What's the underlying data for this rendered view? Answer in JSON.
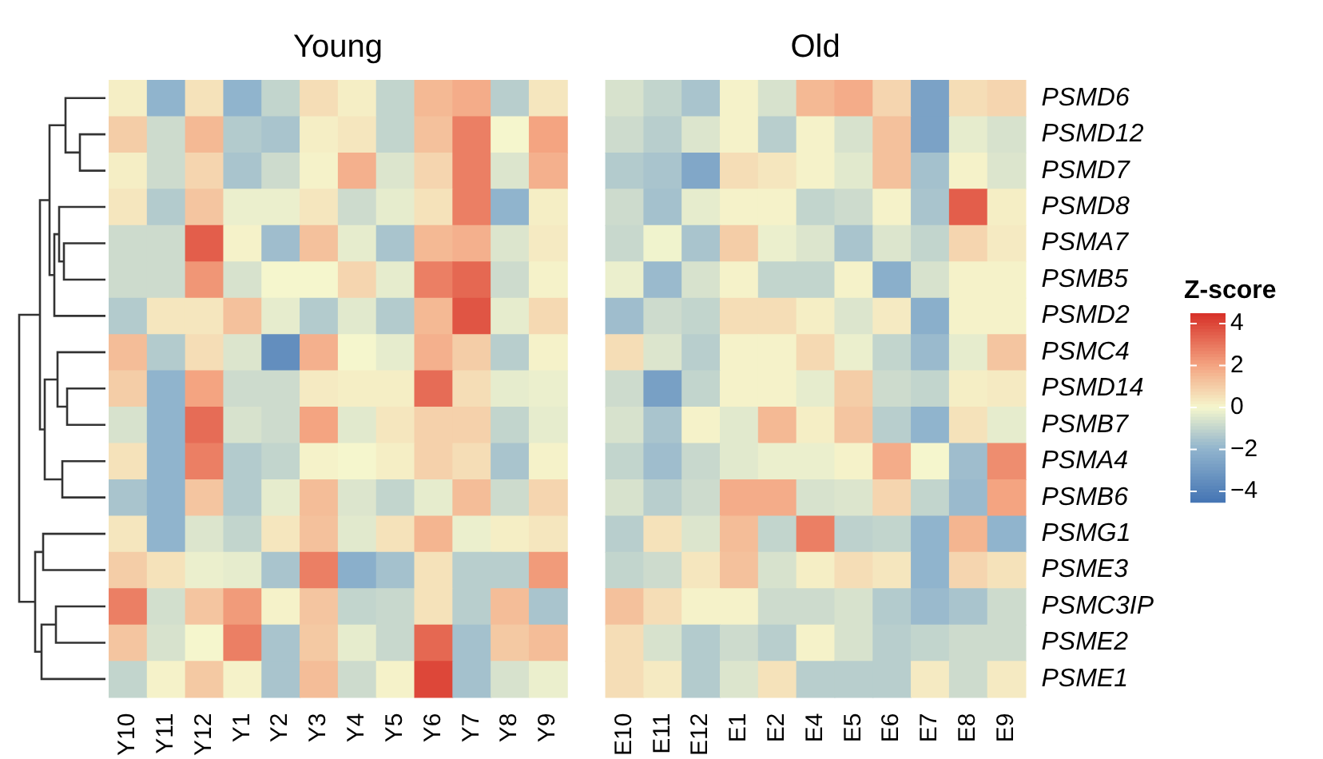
{
  "chart_data": {
    "type": "heatmap",
    "annotations": [
      "Young",
      "Old"
    ],
    "categories": [
      "Y10",
      "Y11",
      "Y12",
      "Y1",
      "Y2",
      "Y3",
      "Y4",
      "Y5",
      "Y6",
      "Y7",
      "Y8",
      "Y9",
      null,
      "E10",
      "E11",
      "E12",
      "E1",
      "E2",
      "E4",
      "E5",
      "E6",
      "E7",
      "E8",
      "E9"
    ],
    "y_categories": [
      "PSMD6",
      "PSMD12",
      "PSMD7",
      "PSMD8",
      "PSMA7",
      "PSMB5",
      "PSMD2",
      "PSMC4",
      "PSMD14",
      "PSMB7",
      "PSMA4",
      "PSMB6",
      "PSMG1",
      "PSME3",
      "PSMC3IP",
      "PSME2",
      "PSME1"
    ],
    "clabel": "Z-score",
    "clim": [
      -4.5,
      4.5
    ],
    "cticks": [
      -4,
      -2,
      0,
      2,
      4
    ],
    "cells": [
      [
        0.2,
        -2,
        0.5,
        -2,
        -1,
        0.6,
        0.2,
        -1,
        1.5,
        1.8,
        -1.2,
        0.4,
        null,
        -0.6,
        -1,
        -1.5,
        0.1,
        -0.6,
        1.5,
        1.8,
        0.8,
        -2.7,
        0.6,
        0.8
      ],
      [
        1,
        -0.8,
        1.5,
        -1.3,
        -1.5,
        0.2,
        0.4,
        -1,
        1.3,
        2.8,
        0,
        2,
        null,
        -0.8,
        -1.2,
        -0.5,
        0.1,
        -1.2,
        0.1,
        -0.6,
        1.3,
        -2.7,
        -0.3,
        -0.6
      ],
      [
        0.2,
        -0.8,
        0.8,
        -1.5,
        -0.8,
        0.1,
        1.7,
        -0.5,
        0.8,
        2.8,
        -0.5,
        1.7,
        null,
        -1.3,
        -1.5,
        -2.5,
        0.6,
        0.4,
        0.1,
        -0.4,
        1.3,
        -1.6,
        0.1,
        -0.5
      ],
      [
        0.4,
        -1.3,
        1.2,
        -0.2,
        -0.2,
        0.4,
        -0.8,
        -0.3,
        0.5,
        2.8,
        -2,
        0.2,
        null,
        -0.8,
        -1.6,
        -0.3,
        0.1,
        0.1,
        -1,
        -0.8,
        0.1,
        -1.5,
        3.5,
        0.2
      ],
      [
        -0.8,
        -0.8,
        3.5,
        0.1,
        -1.7,
        1.3,
        -0.3,
        -1.5,
        1.5,
        1.7,
        -0.5,
        0.3,
        null,
        -0.9,
        -0.1,
        -1.5,
        1,
        -0.2,
        -0.5,
        -1.5,
        -0.5,
        -1,
        0.8,
        0.3
      ],
      [
        -0.8,
        -0.8,
        2.3,
        -0.6,
        0,
        0,
        0.8,
        -0.3,
        2.8,
        3.3,
        -0.8,
        0.1,
        null,
        -0.2,
        -1.8,
        -0.6,
        0.1,
        -1,
        -1,
        0.1,
        -2.2,
        -0.6,
        0.1,
        0.1
      ],
      [
        -1.3,
        0.4,
        0.4,
        1.3,
        -0.3,
        -1.3,
        -0.4,
        -1.3,
        1.5,
        3.7,
        -0.3,
        0.7,
        null,
        -1.7,
        -0.8,
        -1,
        0.6,
        0.6,
        0.2,
        -0.5,
        0.3,
        -2.2,
        0.1,
        0.1
      ],
      [
        1.4,
        -1.3,
        0.6,
        -0.5,
        -3.5,
        1.7,
        0,
        -0.3,
        1.7,
        1,
        -1.2,
        0.1,
        null,
        0.6,
        -0.5,
        -1.2,
        0.1,
        0.1,
        0.7,
        -0.2,
        -1,
        -1.8,
        -0.3,
        1.2
      ],
      [
        1,
        -2,
        2,
        -0.8,
        -0.8,
        0.3,
        0.2,
        0.2,
        3.2,
        0.6,
        -0.3,
        -0.2,
        null,
        -0.8,
        -2.8,
        -1,
        0.1,
        0.1,
        -0.3,
        1,
        -0.8,
        -1,
        0.2,
        0.3
      ],
      [
        -0.6,
        -2,
        3.2,
        -0.6,
        -0.8,
        2,
        -0.4,
        0.4,
        0.9,
        0.9,
        -1,
        -0.3,
        null,
        -0.6,
        -1.5,
        0.1,
        -0.4,
        1.5,
        0.2,
        1.2,
        -1.2,
        -2,
        0.5,
        -0.3
      ],
      [
        0.5,
        -2,
        2.8,
        -1.3,
        -1,
        0.1,
        0,
        0.2,
        0.9,
        0.6,
        -1.5,
        0.1,
        null,
        -1,
        -1.7,
        -0.9,
        -0.4,
        -0.2,
        -0.2,
        0.1,
        1.8,
        0,
        -1.7,
        2.5
      ],
      [
        -1.5,
        -2,
        1.2,
        -1.3,
        -0.3,
        1.4,
        -0.5,
        -1,
        -0.3,
        1.4,
        -0.8,
        0.8,
        null,
        -0.6,
        -1.2,
        -0.8,
        1.8,
        1.8,
        -0.6,
        -0.5,
        0.8,
        -1,
        -1.8,
        2
      ],
      [
        0.4,
        -2,
        -0.5,
        -1,
        0.4,
        1.3,
        -0.4,
        0.5,
        1.6,
        -0.2,
        0.2,
        0.4,
        null,
        -1.2,
        0.5,
        -0.5,
        1.4,
        -1,
        2.8,
        -1.1,
        -1,
        -2,
        1.6,
        -2
      ],
      [
        1,
        0.5,
        -0.2,
        -0.3,
        -1.5,
        2.8,
        -2.2,
        -1.6,
        0.5,
        -1.2,
        -1.2,
        2.2,
        null,
        -1,
        -0.8,
        0.4,
        1.3,
        -0.6,
        0.2,
        0.6,
        0.4,
        -2,
        0.8,
        0.5
      ],
      [
        2.8,
        -0.7,
        1.2,
        2.2,
        0.1,
        1.2,
        -1,
        -0.9,
        0.5,
        -1.2,
        1.4,
        -1.5,
        null,
        1.3,
        0.6,
        0.1,
        0.1,
        -0.8,
        -0.8,
        -0.6,
        -1.3,
        -1.8,
        -1.5,
        -0.8
      ],
      [
        1.2,
        -0.6,
        0,
        2.8,
        -1.5,
        1.1,
        -0.3,
        -0.9,
        3.3,
        -1.6,
        1.1,
        1.4,
        null,
        0.6,
        -0.6,
        -1.3,
        -0.8,
        -1.2,
        0.1,
        -0.6,
        -1.2,
        -1,
        -0.8,
        -0.8
      ],
      [
        -1,
        0.1,
        1.1,
        0.1,
        -1.5,
        1.4,
        -0.8,
        0.1,
        4,
        -1.6,
        -0.6,
        -0.2,
        null,
        0.6,
        0.3,
        -1.3,
        -0.5,
        0.5,
        -1.2,
        -1.2,
        -1.2,
        0.3,
        -0.8,
        0.3
      ]
    ]
  }
}
